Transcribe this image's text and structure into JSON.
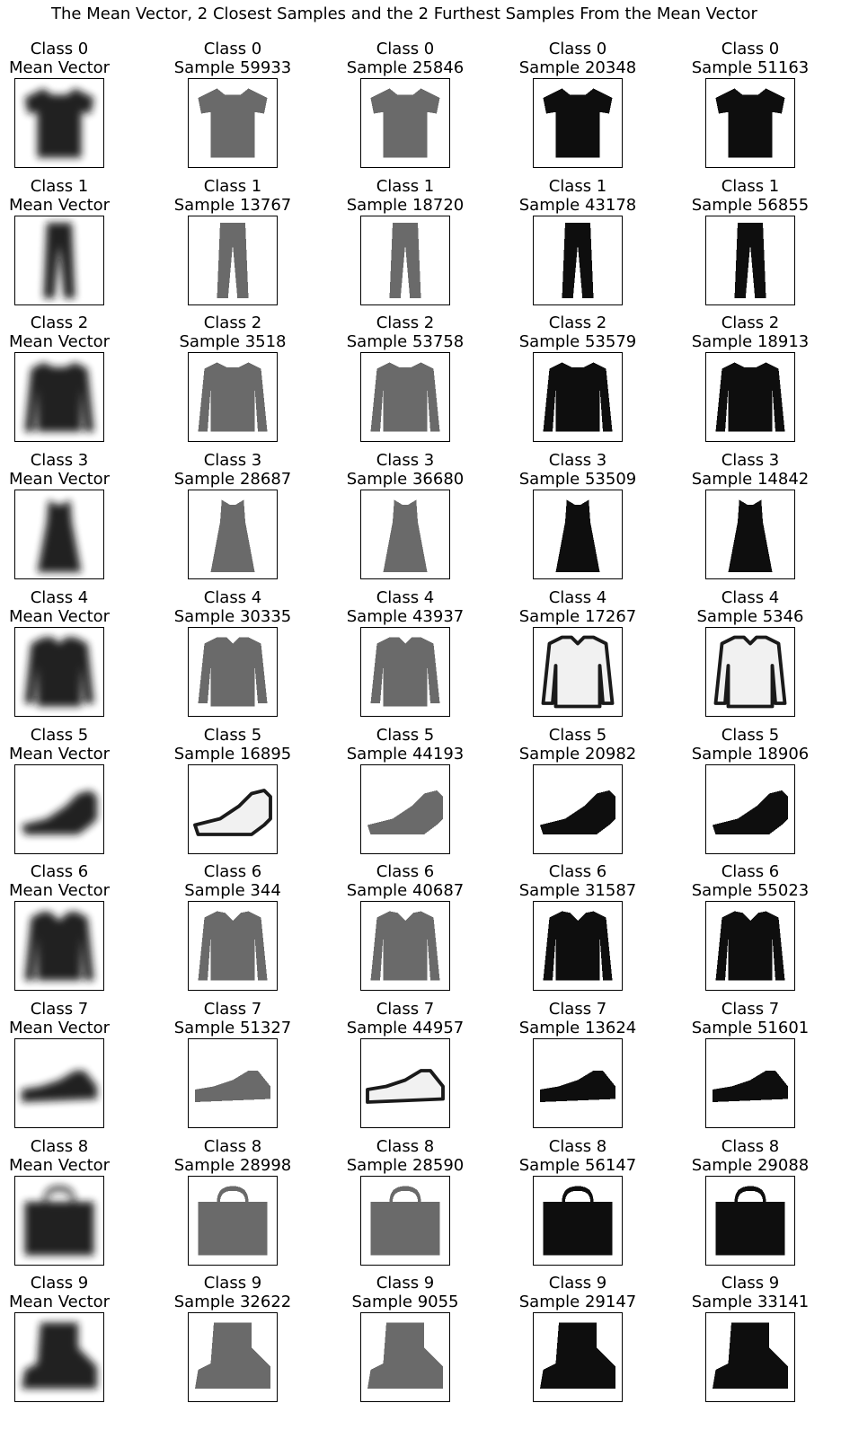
{
  "title": "The Mean Vector, 2 Closest Samples and the 2 Furthest Samples From the Mean Vector",
  "rows": [
    {
      "icon": "tshirt-icon",
      "cells": [
        {
          "line1": "Class 0",
          "line2": "Mean Vector",
          "style": "mean"
        },
        {
          "line1": "Class 0",
          "line2": "Sample 59933",
          "style": "gray"
        },
        {
          "line1": "Class 0",
          "line2": "Sample 25846",
          "style": "gray"
        },
        {
          "line1": "Class 0",
          "line2": "Sample 20348",
          "style": "dark"
        },
        {
          "line1": "Class 0",
          "line2": "Sample 51163",
          "style": "dark"
        }
      ]
    },
    {
      "icon": "trouser-icon",
      "cells": [
        {
          "line1": "Class 1",
          "line2": "Mean Vector",
          "style": "mean"
        },
        {
          "line1": "Class 1",
          "line2": "Sample 13767",
          "style": "gray"
        },
        {
          "line1": "Class 1",
          "line2": "Sample 18720",
          "style": "gray"
        },
        {
          "line1": "Class 1",
          "line2": "Sample 43178",
          "style": "dark"
        },
        {
          "line1": "Class 1",
          "line2": "Sample 56855",
          "style": "dark"
        }
      ]
    },
    {
      "icon": "pullover-icon",
      "cells": [
        {
          "line1": "Class 2",
          "line2": "Mean Vector",
          "style": "mean"
        },
        {
          "line1": "Class 2",
          "line2": "Sample 3518",
          "style": "gray"
        },
        {
          "line1": "Class 2",
          "line2": "Sample 53758",
          "style": "gray"
        },
        {
          "line1": "Class 2",
          "line2": "Sample 53579",
          "style": "dark"
        },
        {
          "line1": "Class 2",
          "line2": "Sample 18913",
          "style": "dark"
        }
      ]
    },
    {
      "icon": "dress-icon",
      "cells": [
        {
          "line1": "Class 3",
          "line2": "Mean Vector",
          "style": "mean"
        },
        {
          "line1": "Class 3",
          "line2": "Sample 28687",
          "style": "gray"
        },
        {
          "line1": "Class 3",
          "line2": "Sample 36680",
          "style": "gray"
        },
        {
          "line1": "Class 3",
          "line2": "Sample 53509",
          "style": "dark"
        },
        {
          "line1": "Class 3",
          "line2": "Sample 14842",
          "style": "dark"
        }
      ]
    },
    {
      "icon": "coat-icon",
      "cells": [
        {
          "line1": "Class 4",
          "line2": "Mean Vector",
          "style": "mean"
        },
        {
          "line1": "Class 4",
          "line2": "Sample 30335",
          "style": "gray"
        },
        {
          "line1": "Class 4",
          "line2": "Sample 43937",
          "style": "gray"
        },
        {
          "line1": "Class 4",
          "line2": "Sample 17267",
          "style": "light"
        },
        {
          "line1": "Class 4",
          "line2": "Sample 5346",
          "style": "light"
        }
      ]
    },
    {
      "icon": "sandal-icon",
      "cells": [
        {
          "line1": "Class 5",
          "line2": "Mean Vector",
          "style": "mean"
        },
        {
          "line1": "Class 5",
          "line2": "Sample 16895",
          "style": "light"
        },
        {
          "line1": "Class 5",
          "line2": "Sample 44193",
          "style": "gray"
        },
        {
          "line1": "Class 5",
          "line2": "Sample 20982",
          "style": "dark"
        },
        {
          "line1": "Class 5",
          "line2": "Sample 18906",
          "style": "dark"
        }
      ]
    },
    {
      "icon": "shirt-icon",
      "cells": [
        {
          "line1": "Class 6",
          "line2": "Mean Vector",
          "style": "mean"
        },
        {
          "line1": "Class 6",
          "line2": "Sample 344",
          "style": "gray"
        },
        {
          "line1": "Class 6",
          "line2": "Sample 40687",
          "style": "gray"
        },
        {
          "line1": "Class 6",
          "line2": "Sample 31587",
          "style": "dark"
        },
        {
          "line1": "Class 6",
          "line2": "Sample 55023",
          "style": "dark"
        }
      ]
    },
    {
      "icon": "sneaker-icon",
      "cells": [
        {
          "line1": "Class 7",
          "line2": "Mean Vector",
          "style": "mean"
        },
        {
          "line1": "Class 7",
          "line2": "Sample 51327",
          "style": "gray"
        },
        {
          "line1": "Class 7",
          "line2": "Sample 44957",
          "style": "light"
        },
        {
          "line1": "Class 7",
          "line2": "Sample 13624",
          "style": "dark"
        },
        {
          "line1": "Class 7",
          "line2": "Sample 51601",
          "style": "dark"
        }
      ]
    },
    {
      "icon": "bag-icon",
      "cells": [
        {
          "line1": "Class 8",
          "line2": "Mean Vector",
          "style": "mean"
        },
        {
          "line1": "Class 8",
          "line2": "Sample 28998",
          "style": "gray"
        },
        {
          "line1": "Class 8",
          "line2": "Sample 28590",
          "style": "gray"
        },
        {
          "line1": "Class 8",
          "line2": "Sample 56147",
          "style": "dark"
        },
        {
          "line1": "Class 8",
          "line2": "Sample 29088",
          "style": "dark"
        }
      ]
    },
    {
      "icon": "ankle-boot-icon",
      "cells": [
        {
          "line1": "Class 9",
          "line2": "Mean Vector",
          "style": "mean"
        },
        {
          "line1": "Class 9",
          "line2": "Sample 32622",
          "style": "gray"
        },
        {
          "line1": "Class 9",
          "line2": "Sample 9055",
          "style": "gray"
        },
        {
          "line1": "Class 9",
          "line2": "Sample 29147",
          "style": "dark"
        },
        {
          "line1": "Class 9",
          "line2": "Sample 33141",
          "style": "dark"
        }
      ]
    }
  ],
  "palette": {
    "mean": "#141414",
    "gray": "#6a6a6a",
    "dark": "#0e0e0e",
    "light": "#f1f1f1",
    "frame": "#000000"
  }
}
